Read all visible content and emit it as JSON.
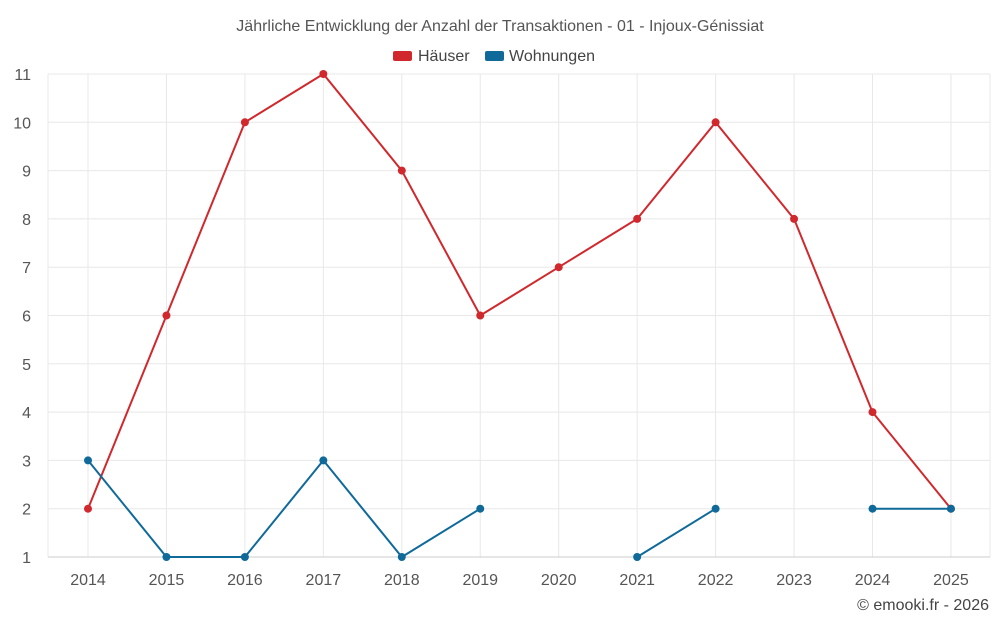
{
  "chart_data": {
    "type": "line",
    "title": "Jährliche Entwicklung der Anzahl der Transaktionen - 01 - Injoux-Génissiat",
    "categories": [
      "2014",
      "2015",
      "2016",
      "2017",
      "2018",
      "2019",
      "2020",
      "2021",
      "2022",
      "2023",
      "2024",
      "2025"
    ],
    "ylim": [
      1,
      11
    ],
    "yticks": [
      1,
      2,
      3,
      4,
      5,
      6,
      7,
      8,
      9,
      10,
      11
    ],
    "grid": true,
    "legend_position": "top-center",
    "series": [
      {
        "name": "Häuser",
        "color": "#d0282d",
        "values": [
          2,
          6,
          10,
          11,
          9,
          6,
          7,
          8,
          10,
          8,
          4,
          2
        ]
      },
      {
        "name": "Wohnungen",
        "color": "#0f6a9a",
        "values": [
          3,
          1,
          1,
          3,
          1,
          2,
          null,
          1,
          2,
          null,
          2,
          2
        ]
      }
    ]
  },
  "credit": "© emooki.fr - 2026"
}
